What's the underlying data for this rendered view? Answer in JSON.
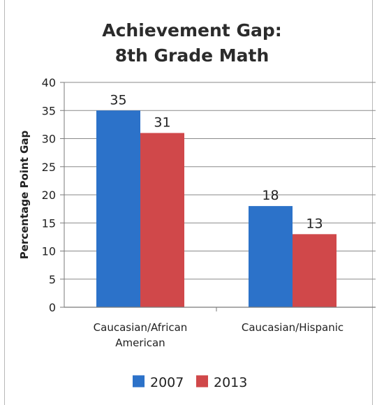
{
  "chart_data": {
    "type": "bar",
    "title_lines": [
      "Achievement Gap:",
      "8th Grade Math"
    ],
    "xlabel": "",
    "ylabel": "Percentage Point Gap",
    "ylim": [
      0,
      40
    ],
    "yticks": [
      0,
      5,
      10,
      15,
      20,
      25,
      30,
      35,
      40
    ],
    "categories": [
      [
        "Caucasian/African",
        "American"
      ],
      [
        "Caucasian/Hispanic"
      ]
    ],
    "series": [
      {
        "name": "2007",
        "color": "#2c72c9",
        "values": [
          35,
          18
        ]
      },
      {
        "name": "2013",
        "color": "#d0484a",
        "values": [
          31,
          13
        ]
      }
    ],
    "data_labels": true,
    "grid": true,
    "legend": "bottom"
  }
}
